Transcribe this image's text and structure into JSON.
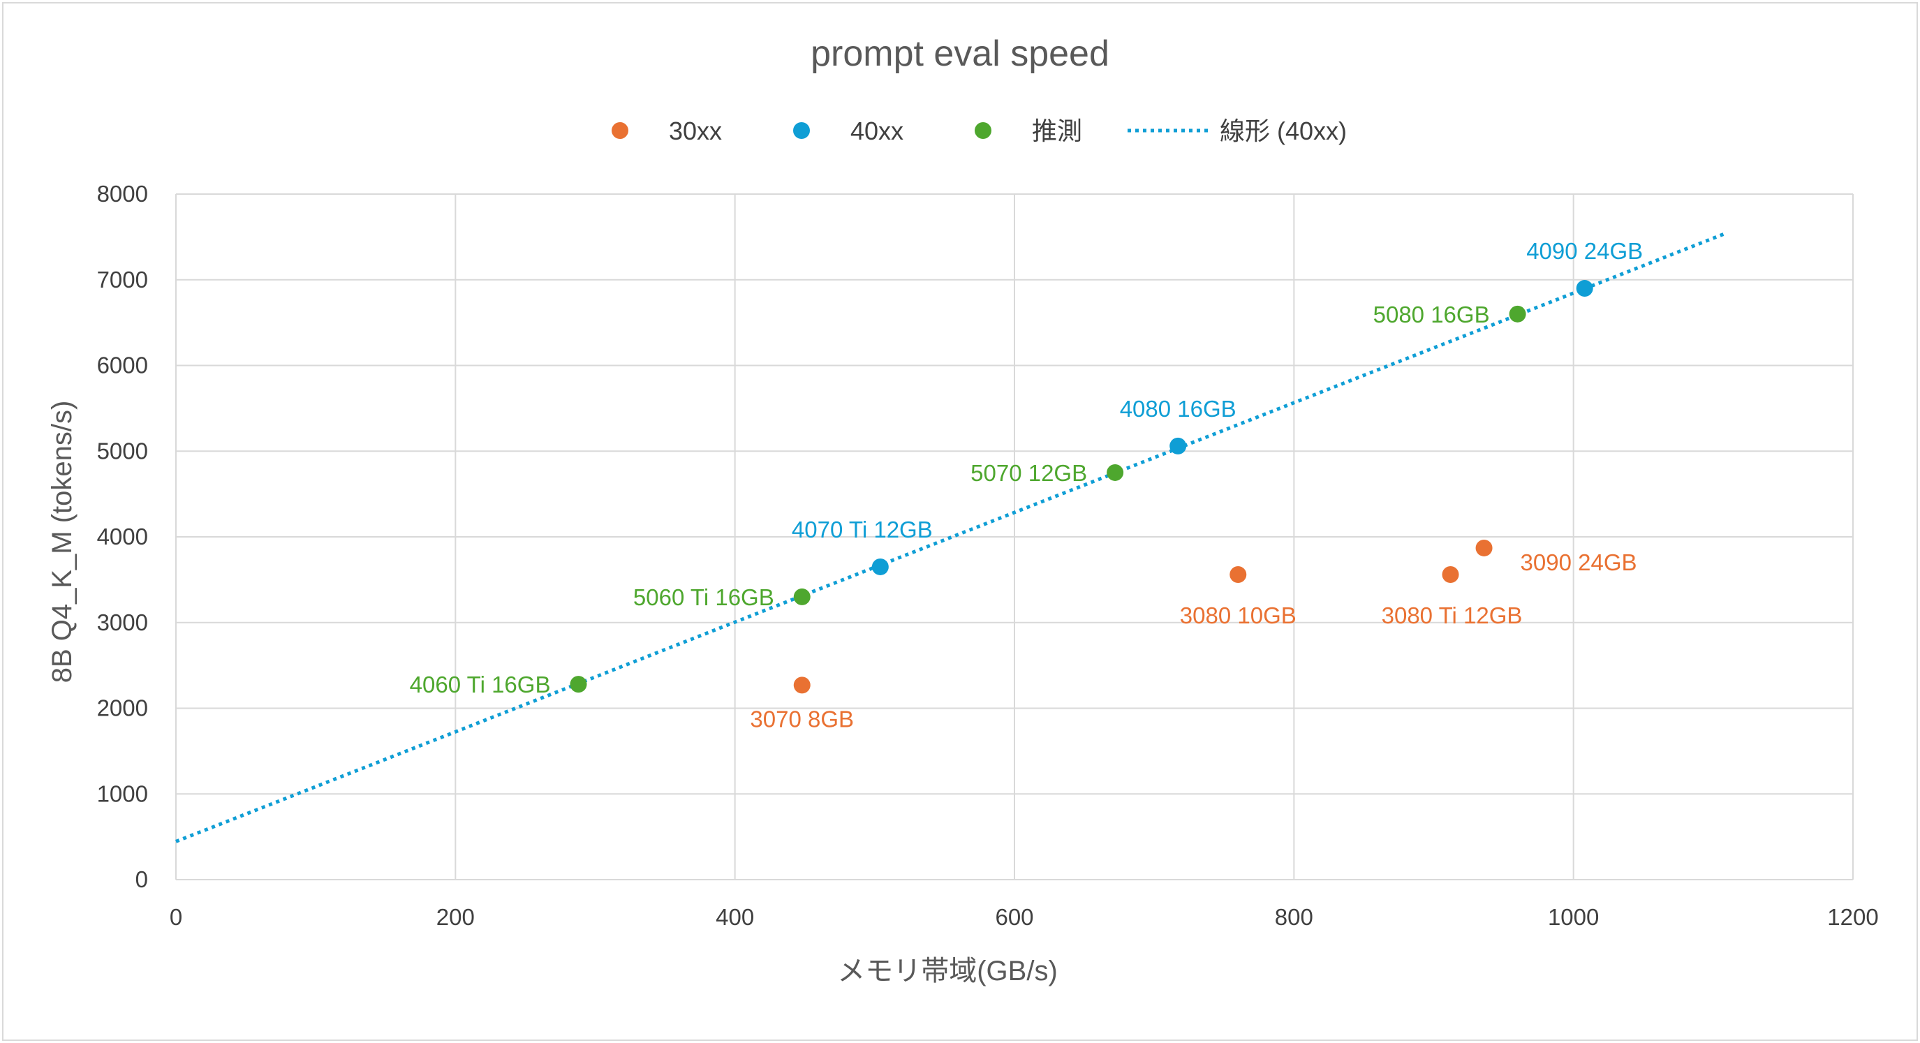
{
  "chart_data": {
    "type": "scatter",
    "title": "prompt eval speed",
    "xlabel": "メモリ帯域(GB/s)",
    "ylabel": "8B Q4_K_M (tokens/s)",
    "xlim": [
      0,
      1200
    ],
    "ylim": [
      0,
      8000
    ],
    "x_ticks": [
      "0",
      "200",
      "400",
      "600",
      "800",
      "1000",
      "1200"
    ],
    "y_ticks": [
      "0",
      "1000",
      "2000",
      "3000",
      "4000",
      "5000",
      "6000",
      "7000",
      "8000"
    ],
    "grid": true,
    "legend_position": "top",
    "series": [
      {
        "name": "30xx",
        "color": "#e97132",
        "points": [
          {
            "label": "3070 8GB",
            "x": 448,
            "y": 2270
          },
          {
            "label": "3080 10GB",
            "x": 760,
            "y": 3560
          },
          {
            "label": "3080 Ti 12GB",
            "x": 912,
            "y": 3560
          },
          {
            "label": "3090 24GB",
            "x": 936,
            "y": 3870
          }
        ]
      },
      {
        "name": "40xx",
        "color": "#0f9ed5",
        "points": [
          {
            "label": "4070 Ti 12GB",
            "x": 504,
            "y": 3650
          },
          {
            "label": "4080 16GB",
            "x": 717,
            "y": 5060
          },
          {
            "label": "4090 24GB",
            "x": 1008,
            "y": 6900
          }
        ]
      },
      {
        "name": "推測",
        "color": "#4ea72e",
        "points": [
          {
            "label": "4060 Ti 16GB",
            "x": 288,
            "y": 2280
          },
          {
            "label": "5060 Ti 16GB",
            "x": 448,
            "y": 3300
          },
          {
            "label": "5070 12GB",
            "x": 672,
            "y": 4750
          },
          {
            "label": "5080 16GB",
            "x": 960,
            "y": 6600
          }
        ]
      }
    ],
    "trendline": {
      "name": "線形 (40xx)",
      "type": "linear",
      "color": "#0f9ed5",
      "style": "dotted",
      "x_range": [
        0,
        1110
      ],
      "slope": 6.4,
      "intercept": 445
    }
  }
}
